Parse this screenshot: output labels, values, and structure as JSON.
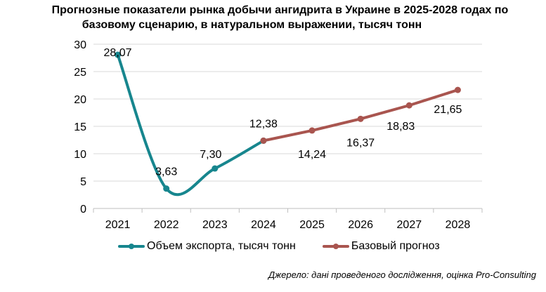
{
  "title": {
    "line1": "Прогнозные показатели рынка добычи ангидрита в Украине в 2025-2028 годах по",
    "line2": "базовому сценарию, в натуральном выражении, тысяч тонн"
  },
  "source": "Джерело: дані проведеного дослідження, оцінка Pro-Consulting",
  "chart_data": {
    "type": "line",
    "title": "Прогнозные показатели рынка добычи ангидрита в Украине в 2025-2028 годах по базовому сценарию, в натуральном выражении, тысяч тонн",
    "xlabel": "",
    "ylabel": "",
    "categories": [
      "2021",
      "2022",
      "2023",
      "2024",
      "2025",
      "2026",
      "2027",
      "2028"
    ],
    "ylim": [
      0,
      30
    ],
    "yticks": [
      0,
      5,
      10,
      15,
      20,
      25,
      30
    ],
    "grid": true,
    "legend_position": "bottom",
    "series": [
      {
        "name": "Объем экспорта, тысяч тонн",
        "color": "#17868e",
        "smooth": true,
        "points": [
          {
            "x": "2021",
            "y": 28.07,
            "label": "28,07"
          },
          {
            "x": "2022",
            "y": 3.63,
            "label": "3,63"
          },
          {
            "x": "2023",
            "y": 7.3,
            "label": "7,30"
          },
          {
            "x": "2024",
            "y": 12.38,
            "label": "12,38"
          }
        ]
      },
      {
        "name": "Базовый прогноз",
        "color": "#a9554f",
        "smooth": false,
        "points": [
          {
            "x": "2024",
            "y": 12.38,
            "label": ""
          },
          {
            "x": "2025",
            "y": 14.24,
            "label": "14,24"
          },
          {
            "x": "2026",
            "y": 16.37,
            "label": "16,37"
          },
          {
            "x": "2027",
            "y": 18.83,
            "label": "18,83"
          },
          {
            "x": "2028",
            "y": 21.65,
            "label": "21,65"
          }
        ]
      }
    ]
  }
}
